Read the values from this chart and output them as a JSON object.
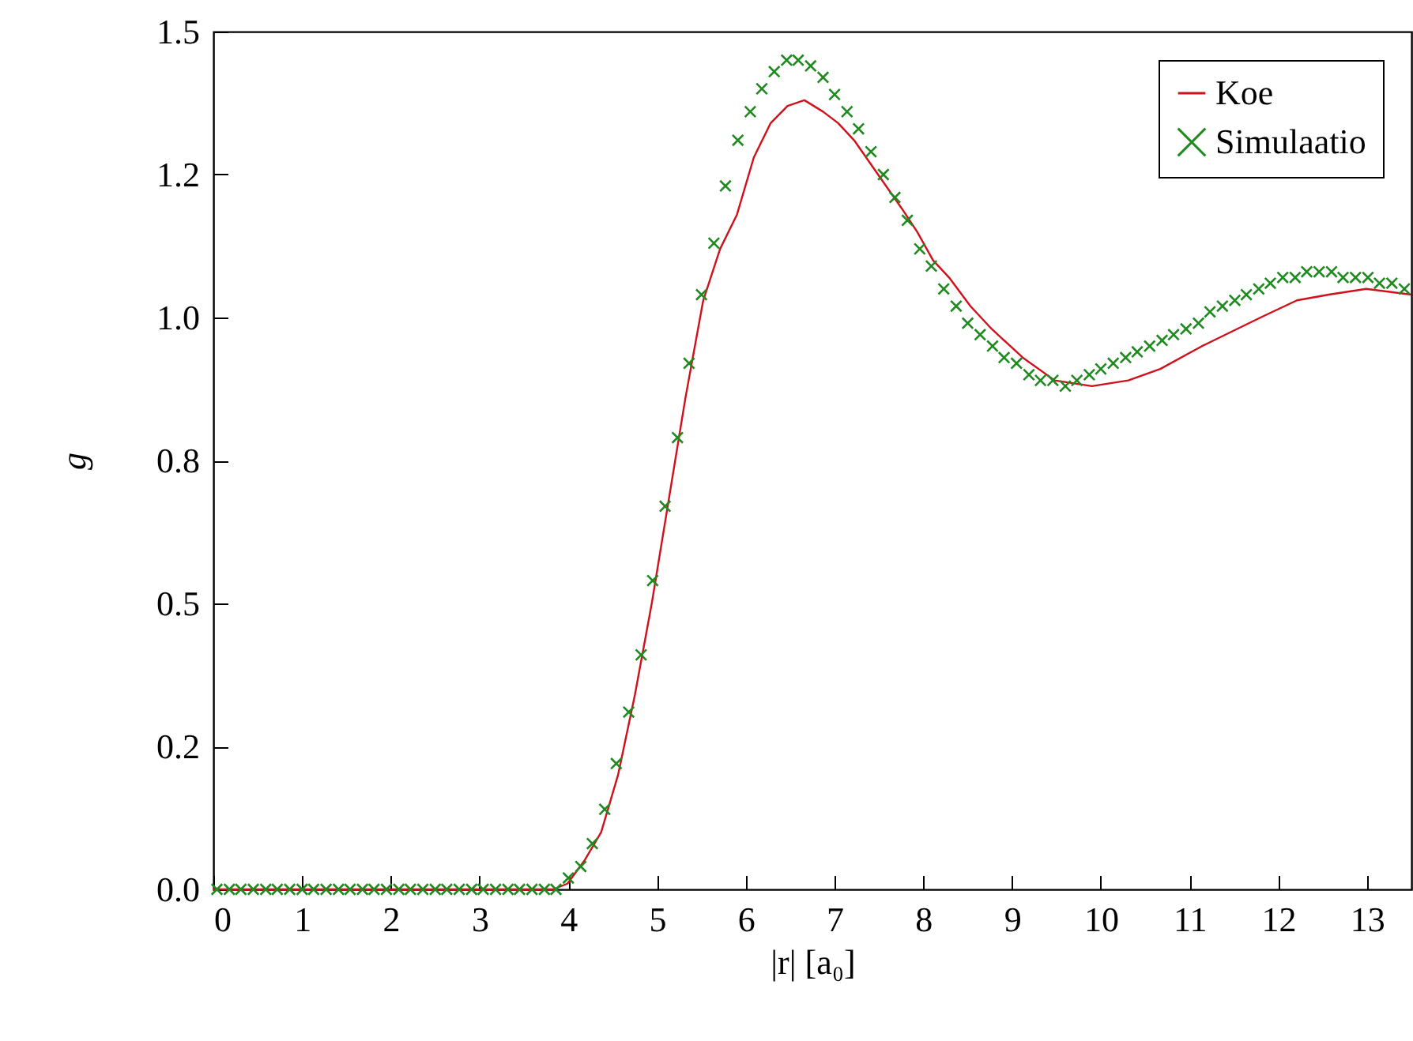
{
  "chart_data": {
    "type": "line",
    "xlabel": "|r| [a₀]",
    "ylabel": "g",
    "xlim": [
      0,
      13.5
    ],
    "xticks": [
      0,
      1,
      2,
      3,
      4,
      5,
      6,
      7,
      8,
      9,
      10,
      11,
      12,
      13
    ],
    "ylim": [
      0,
      1.5
    ],
    "yticks": [
      {
        "value": 0,
        "label": "0.0"
      },
      {
        "value": 0.25,
        "label": "0.2"
      },
      {
        "value": 0.5,
        "label": "0.5"
      },
      {
        "value": 0.75,
        "label": "0.8"
      },
      {
        "value": 1,
        "label": "1.0"
      },
      {
        "value": 1.25,
        "label": "1.2"
      },
      {
        "value": 1.5,
        "label": "1.5"
      }
    ],
    "legend": "top right",
    "grid": false,
    "line_style": "solid",
    "series": [
      {
        "name": "Koe",
        "color": "#d0101a",
        "x": [
          0,
          3.83,
          3.99,
          4.18,
          4.37,
          4.56,
          4.75,
          4.94,
          5.13,
          5.32,
          5.52,
          5.71,
          5.9,
          6.09,
          6.28,
          6.47,
          6.66,
          6.87,
          7.04,
          7.22,
          7.4,
          7.58,
          7.76,
          7.93,
          8.11,
          8.29,
          8.53,
          8.77,
          9.12,
          9.48,
          9.9,
          10.31,
          10.67,
          11.14,
          11.8,
          12.21,
          12.57,
          12.99,
          13.5
        ],
        "values": [
          0,
          0,
          0.01,
          0.05,
          0.1,
          0.2,
          0.34,
          0.5,
          0.68,
          0.86,
          1.03,
          1.12,
          1.18,
          1.28,
          1.34,
          1.37,
          1.38,
          1.36,
          1.34,
          1.31,
          1.27,
          1.23,
          1.19,
          1.15,
          1.1,
          1.07,
          1.02,
          0.98,
          0.93,
          0.89,
          0.88,
          0.89,
          0.91,
          0.95,
          1.0,
          1.03,
          1.04,
          1.05,
          1.04
        ]
      },
      {
        "name": "Simulaatio",
        "type": "scatter",
        "marker": "cross",
        "color": "#1f8a1f",
        "x": [
          0.04,
          0.18,
          0.31,
          0.45,
          0.59,
          0.72,
          0.86,
          1.0,
          1.13,
          1.27,
          1.41,
          1.54,
          1.68,
          1.81,
          1.95,
          2.09,
          2.22,
          2.36,
          2.5,
          2.63,
          2.77,
          2.91,
          3.04,
          3.18,
          3.32,
          3.45,
          3.59,
          3.73,
          3.86,
          4.0,
          4.14,
          4.27,
          4.41,
          4.54,
          4.68,
          4.82,
          4.95,
          5.09,
          5.23,
          5.36,
          5.5,
          5.64,
          5.77,
          5.91,
          6.05,
          6.18,
          6.32,
          6.46,
          6.59,
          6.73,
          6.87,
          7.0,
          7.14,
          7.27,
          7.41,
          7.55,
          7.68,
          7.82,
          7.96,
          8.09,
          8.23,
          8.37,
          8.5,
          8.64,
          8.78,
          8.91,
          9.05,
          9.19,
          9.32,
          9.46,
          9.6,
          9.73,
          9.87,
          10.0,
          10.14,
          10.28,
          10.41,
          10.55,
          10.69,
          10.82,
          10.96,
          11.1,
          11.23,
          11.37,
          11.51,
          11.64,
          11.78,
          11.91,
          12.05,
          12.19,
          12.32,
          12.46,
          12.6,
          12.73,
          12.87,
          13.01,
          13.14,
          13.28,
          13.42
        ],
        "values": [
          0,
          0,
          0,
          0,
          0,
          0,
          0,
          0,
          0,
          0,
          0,
          0,
          0,
          0,
          0,
          0,
          0,
          0,
          0,
          0,
          0,
          0,
          0,
          0,
          0,
          0,
          0,
          0,
          0,
          0.02,
          0.04,
          0.08,
          0.14,
          0.22,
          0.31,
          0.41,
          0.54,
          0.67,
          0.79,
          0.92,
          1.04,
          1.13,
          1.23,
          1.31,
          1.36,
          1.4,
          1.43,
          1.45,
          1.45,
          1.44,
          1.42,
          1.39,
          1.36,
          1.33,
          1.29,
          1.25,
          1.21,
          1.17,
          1.12,
          1.09,
          1.05,
          1.02,
          0.99,
          0.97,
          0.95,
          0.93,
          0.92,
          0.9,
          0.89,
          0.89,
          0.88,
          0.89,
          0.9,
          0.91,
          0.92,
          0.93,
          0.94,
          0.95,
          0.96,
          0.97,
          0.98,
          0.99,
          1.01,
          1.02,
          1.03,
          1.04,
          1.05,
          1.06,
          1.07,
          1.07,
          1.08,
          1.08,
          1.08,
          1.07,
          1.07,
          1.07,
          1.06,
          1.06,
          1.05
        ]
      }
    ]
  }
}
